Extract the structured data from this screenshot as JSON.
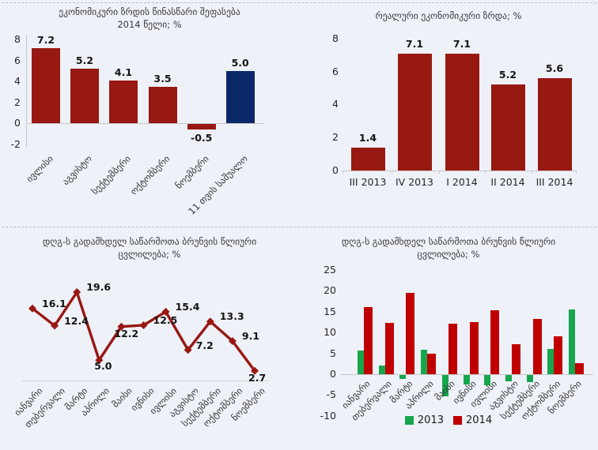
{
  "page": {
    "background": "#EEF1F8",
    "divider_color": "#9DC3E6"
  },
  "chart_data": [
    {
      "id": "growth-forecast-2014",
      "type": "bar",
      "title_lines": [
        "ეკონომიკური ზრდის წინასწარი შეფასება",
        "2014 წელი; %"
      ],
      "categories": [
        "ივლისი",
        "აგვისტო",
        "სექტემბერი",
        "ოქტომბერი",
        "ნოემბერი",
        "11 თვის საშუალო"
      ],
      "values": [
        7.2,
        5.2,
        4.1,
        3.5,
        -0.5,
        5.0
      ],
      "bar_colors": [
        "#981812",
        "#981812",
        "#981812",
        "#981812",
        "#981812",
        "#0A2768"
      ],
      "yticks": [
        8,
        6,
        4,
        2,
        0,
        -2
      ],
      "ylim": [
        -2,
        8
      ],
      "grid": false,
      "data_labels": true
    },
    {
      "id": "real-economic-growth",
      "type": "bar",
      "title_lines": [
        "რეალური ეკონომიკური ზრდა; %"
      ],
      "categories": [
        "III 2013",
        "IV 2013",
        "I 2014",
        "II 2014",
        "III 2014"
      ],
      "values": [
        1.4,
        7.1,
        7.1,
        5.2,
        5.6
      ],
      "bar_colors": [
        "#981812",
        "#981812",
        "#981812",
        "#981812",
        "#981812"
      ],
      "yticks": [
        8,
        6,
        4,
        2,
        0
      ],
      "ylim": [
        0,
        8
      ],
      "grid": false,
      "data_labels": true
    },
    {
      "id": "vat-payers-turnover-line",
      "type": "line",
      "title_lines": [
        "დღგ-ს გადამხდელ საწარმოთა ბრუნვის წლიური",
        "ცვლილება; %"
      ],
      "categories": [
        "იანვარი",
        "თებერვალი",
        "მარტი",
        "აპრილი",
        "მაისი",
        "ივნისი",
        "ივლისი",
        "აგვისტო",
        "სექტემბერი",
        "ოქტომბერი",
        "ნოემბერი"
      ],
      "values": [
        16.1,
        12.4,
        19.6,
        5.0,
        12.2,
        12.5,
        15.4,
        7.2,
        13.3,
        9.1,
        2.7
      ],
      "line_color": "#981812",
      "marker": "diamond",
      "ylim": [
        0,
        22
      ],
      "grid": false,
      "data_labels": true
    },
    {
      "id": "vat-payers-turnover-bars",
      "type": "bar",
      "title_lines": [
        "დღგ-ს გადამხდელ საწარმოთა ბრუნვის წლიური",
        "ცვლილება; %"
      ],
      "categories": [
        "იანვარი",
        "თებერვალი",
        "მარტი",
        "აპრილი",
        "მაისი",
        "ივნისი",
        "ივლისი",
        "აგვისტო",
        "სექტემბერი",
        "ოქტომბერი",
        "ნოემბერი"
      ],
      "series": [
        {
          "name": "2013",
          "color": "#17A64E",
          "values": [
            5.7,
            2.1,
            -1.0,
            5.8,
            -5.2,
            -2.3,
            -2.5,
            -1.5,
            -1.7,
            6.1,
            15.5
          ]
        },
        {
          "name": "2014",
          "color": "#C00000",
          "values": [
            16.1,
            12.4,
            19.6,
            5.0,
            12.2,
            12.5,
            15.4,
            7.2,
            13.3,
            9.1,
            2.7
          ]
        }
      ],
      "yticks": [
        25,
        20,
        15,
        10,
        5,
        0,
        -5,
        -10
      ],
      "ylim": [
        -10,
        25
      ],
      "legend": [
        "2013",
        "2014"
      ],
      "legend_position": "bottom",
      "grid": false,
      "data_labels": false
    }
  ]
}
